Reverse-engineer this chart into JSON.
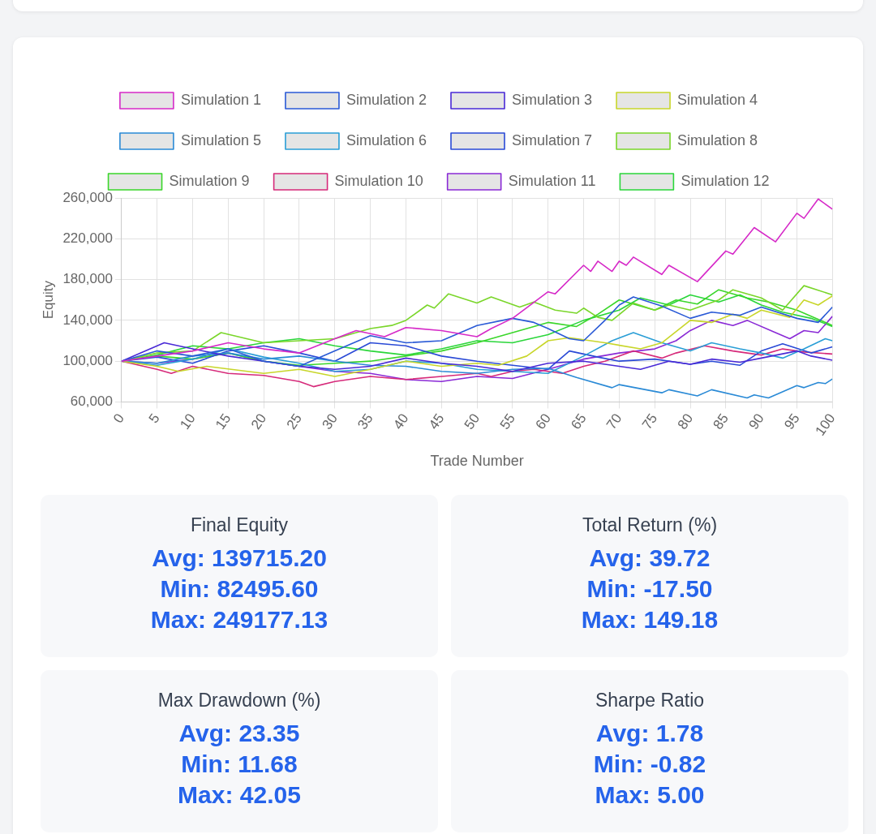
{
  "chart_data": [
    {
      "type": "line",
      "xlabel": "Trade Number",
      "ylabel": "Equity",
      "xlim": [
        0,
        100
      ],
      "xticks": [
        0,
        5,
        10,
        15,
        20,
        25,
        30,
        35,
        40,
        45,
        50,
        55,
        60,
        65,
        70,
        75,
        80,
        85,
        90,
        95,
        100
      ],
      "ylim": [
        60000,
        260000
      ],
      "yticks": [
        {
          "value": 60000,
          "label": "60,000"
        },
        {
          "value": 100000,
          "label": "100,000"
        },
        {
          "value": 140000,
          "label": "140,000"
        },
        {
          "value": 180000,
          "label": "180,000"
        },
        {
          "value": 220000,
          "label": "220,000"
        },
        {
          "value": 260000,
          "label": "260,000"
        }
      ],
      "grid": true,
      "legend": "top",
      "marker": "none",
      "line_style": "solid",
      "series": [
        {
          "name": "Simulation 1",
          "color": "#d62ac8",
          "x": [
            0,
            5,
            10,
            15,
            20,
            25,
            30,
            33,
            37,
            40,
            45,
            50,
            52,
            55,
            60,
            61,
            65,
            66,
            67,
            69,
            70,
            71,
            72,
            76,
            77,
            81,
            85,
            86,
            89,
            92,
            95,
            96,
            98,
            100
          ],
          "values": [
            100000,
            105000,
            110000,
            118000,
            112000,
            108000,
            122000,
            130000,
            124000,
            133000,
            130000,
            124000,
            132000,
            142000,
            168000,
            166000,
            194000,
            188000,
            198000,
            188000,
            198000,
            194000,
            202000,
            185000,
            194000,
            178000,
            208000,
            205000,
            231000,
            217000,
            245000,
            240000,
            259000,
            249000
          ]
        },
        {
          "name": "Simulation 2",
          "color": "#2a5ad6",
          "x": [
            0,
            5,
            10,
            15,
            20,
            25,
            30,
            35,
            40,
            45,
            50,
            55,
            58,
            60,
            63,
            65,
            68,
            70,
            72,
            76,
            80,
            83,
            87,
            90,
            95,
            98,
            100
          ],
          "values": [
            100000,
            110000,
            105000,
            112000,
            100000,
            95000,
            110000,
            125000,
            118000,
            120000,
            135000,
            142000,
            138000,
            132000,
            122000,
            120000,
            140000,
            155000,
            163000,
            154000,
            142000,
            148000,
            145000,
            153000,
            142000,
            138000,
            153000
          ]
        },
        {
          "name": "Simulation 3",
          "color": "#4a2ad6",
          "x": [
            0,
            6,
            10,
            15,
            20,
            25,
            30,
            35,
            40,
            45,
            50,
            55,
            60,
            65,
            70,
            73,
            77,
            80,
            83,
            87,
            90,
            95,
            97,
            100
          ],
          "values": [
            100000,
            118000,
            112000,
            105000,
            100000,
            95000,
            92000,
            95000,
            103000,
            98000,
            95000,
            90000,
            98000,
            100000,
            95000,
            92000,
            100000,
            97000,
            102000,
            99000,
            103000,
            110000,
            105000,
            101000
          ]
        },
        {
          "name": "Simulation 4",
          "color": "#c8d62a",
          "x": [
            0,
            5,
            8,
            12,
            20,
            25,
            30,
            35,
            40,
            45,
            50,
            53,
            57,
            60,
            63,
            68,
            73,
            76,
            80,
            83,
            86,
            88,
            90,
            94,
            96,
            98,
            100
          ],
          "values": [
            100000,
            95000,
            90000,
            95000,
            88000,
            92000,
            85000,
            92000,
            100000,
            95000,
            98000,
            96000,
            105000,
            120000,
            123000,
            118000,
            112000,
            118000,
            140000,
            138000,
            146000,
            142000,
            150000,
            143000,
            160000,
            155000,
            164000
          ]
        },
        {
          "name": "Simulation 5",
          "color": "#2a8ad6",
          "x": [
            0,
            5,
            10,
            15,
            20,
            25,
            30,
            35,
            40,
            45,
            50,
            55,
            60,
            64,
            69,
            70,
            76,
            77,
            81,
            83,
            88,
            89,
            91,
            95,
            96,
            98,
            99,
            100
          ],
          "values": [
            100000,
            98000,
            105000,
            108000,
            102000,
            105000,
            100000,
            96000,
            95000,
            90000,
            88000,
            92000,
            93000,
            84000,
            74000,
            77000,
            69000,
            72000,
            66000,
            72000,
            64000,
            67000,
            64000,
            76000,
            74000,
            79000,
            78000,
            82500
          ]
        },
        {
          "name": "Simulation 6",
          "color": "#2a9ed6",
          "x": [
            0,
            5,
            10,
            15,
            20,
            25,
            30,
            35,
            40,
            45,
            50,
            55,
            60,
            65,
            69,
            72,
            76,
            80,
            83,
            87,
            90,
            93,
            96,
            99,
            100
          ],
          "values": [
            100000,
            96000,
            102000,
            112000,
            104000,
            98000,
            90000,
            92000,
            100000,
            98000,
            92000,
            90000,
            88000,
            105000,
            120000,
            128000,
            118000,
            110000,
            118000,
            112000,
            108000,
            103000,
            112000,
            122000,
            120000
          ]
        },
        {
          "name": "Simulation 7",
          "color": "#2a4ad6",
          "x": [
            0,
            5,
            10,
            15,
            20,
            25,
            30,
            35,
            40,
            45,
            50,
            55,
            60,
            63,
            67,
            70,
            75,
            80,
            83,
            87,
            90,
            93,
            97,
            100
          ],
          "values": [
            100000,
            104000,
            98000,
            110000,
            115000,
            108000,
            100000,
            118000,
            115000,
            105000,
            100000,
            96000,
            92000,
            110000,
            104000,
            100000,
            102000,
            97000,
            100000,
            96000,
            110000,
            117000,
            108000,
            114000
          ]
        },
        {
          "name": "Simulation 8",
          "color": "#7ad62a",
          "x": [
            0,
            5,
            10,
            14,
            20,
            25,
            30,
            35,
            38,
            40,
            43,
            44,
            46,
            50,
            52,
            56,
            58,
            61,
            64,
            65,
            67,
            69,
            72,
            75,
            77,
            80,
            84,
            86,
            90,
            93,
            96,
            100
          ],
          "values": [
            100000,
            108000,
            110000,
            128000,
            118000,
            120000,
            122000,
            132000,
            135000,
            140000,
            155000,
            152000,
            166000,
            157000,
            163000,
            153000,
            158000,
            150000,
            147000,
            152000,
            143000,
            140000,
            157000,
            150000,
            155000,
            150000,
            160000,
            170000,
            162000,
            150000,
            174000,
            165000
          ]
        },
        {
          "name": "Simulation 9",
          "color": "#3ad62a",
          "x": [
            0,
            5,
            10,
            15,
            20,
            25,
            30,
            35,
            40,
            45,
            50,
            55,
            60,
            64,
            67,
            70,
            75,
            78,
            81,
            84,
            88,
            91,
            95,
            100
          ],
          "values": [
            100000,
            105000,
            102000,
            108000,
            100000,
            96000,
            98000,
            100000,
            105000,
            110000,
            118000,
            128000,
            138000,
            134000,
            146000,
            160000,
            150000,
            160000,
            156000,
            170000,
            162000,
            158000,
            150000,
            135000
          ]
        },
        {
          "name": "Simulation 10",
          "color": "#d62a7a",
          "x": [
            0,
            5,
            7,
            10,
            15,
            20,
            25,
            27,
            30,
            35,
            40,
            45,
            50,
            52,
            55,
            58,
            62,
            65,
            68,
            72,
            76,
            78,
            82,
            86,
            90,
            93,
            96,
            100
          ],
          "values": [
            100000,
            92000,
            88000,
            95000,
            88000,
            86000,
            80000,
            75000,
            80000,
            85000,
            82000,
            85000,
            88000,
            85000,
            90000,
            92000,
            88000,
            95000,
            100000,
            110000,
            103000,
            108000,
            115000,
            110000,
            106000,
            112000,
            109000,
            107000
          ]
        },
        {
          "name": "Simulation 11",
          "color": "#8a2ad6",
          "x": [
            0,
            5,
            10,
            15,
            20,
            25,
            30,
            35,
            40,
            45,
            50,
            55,
            60,
            65,
            70,
            75,
            78,
            80,
            83,
            86,
            88,
            92,
            94,
            96,
            98,
            100
          ],
          "values": [
            100000,
            98000,
            102000,
            108000,
            100000,
            95000,
            90000,
            88000,
            82000,
            80000,
            85000,
            83000,
            92000,
            102000,
            108000,
            112000,
            120000,
            130000,
            140000,
            135000,
            140000,
            128000,
            122000,
            130000,
            128000,
            144000
          ]
        },
        {
          "name": "Simulation 12",
          "color": "#2ad63a",
          "x": [
            0,
            5,
            10,
            15,
            20,
            25,
            30,
            35,
            40,
            45,
            50,
            55,
            60,
            65,
            70,
            73,
            77,
            80,
            84,
            87,
            90,
            93,
            97,
            100
          ],
          "values": [
            100000,
            106000,
            115000,
            112000,
            118000,
            122000,
            115000,
            110000,
            106000,
            112000,
            120000,
            118000,
            126000,
            140000,
            150000,
            162000,
            155000,
            165000,
            158000,
            165000,
            155000,
            148000,
            142000,
            134000
          ]
        }
      ]
    },
    {
      "type": "other",
      "title": "Final Equity",
      "annotations": [
        "Avg: 139715.20",
        "Min: 82495.60",
        "Max: 249177.13"
      ]
    },
    {
      "type": "other",
      "title": "Total Return (%)",
      "annotations": [
        "Avg: 39.72",
        "Min: -17.50",
        "Max: 149.18"
      ]
    },
    {
      "type": "other",
      "title": "Max Drawdown (%)",
      "annotations": [
        "Avg: 23.35",
        "Min: 11.68",
        "Max: 42.05"
      ]
    },
    {
      "type": "other",
      "title": "Sharpe Ratio",
      "annotations": [
        "Avg: 1.78",
        "Min: -0.82",
        "Max: 5.00"
      ]
    }
  ]
}
